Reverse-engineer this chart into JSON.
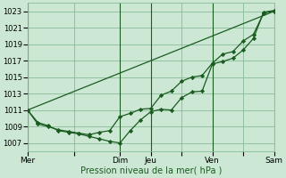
{
  "xlabel": "Pression niveau de la mer( hPa )",
  "background_color": "#cce8d4",
  "plot_bg_color": "#cce8d4",
  "grid_color": "#88bb99",
  "line_color": "#1a5c20",
  "ylim": [
    1006,
    1024
  ],
  "yticks": [
    1007,
    1009,
    1011,
    1013,
    1015,
    1017,
    1019,
    1021,
    1023
  ],
  "day_labels": [
    "Mer",
    "",
    "Dim",
    "Jeu",
    "",
    "Ven",
    "",
    "Sam"
  ],
  "day_positions": [
    0,
    36,
    72,
    96,
    120,
    144,
    168,
    192
  ],
  "xlim": [
    0,
    192
  ],
  "vlines": [
    0,
    72,
    96,
    144,
    192
  ],
  "series1_x": [
    0,
    8,
    16,
    24,
    32,
    40,
    48,
    56,
    64,
    72,
    80,
    88,
    96,
    104,
    112,
    120,
    128,
    136,
    144,
    152,
    160,
    168,
    176,
    184,
    192
  ],
  "series1_y": [
    1011,
    1009.5,
    1009.1,
    1008.5,
    1008.3,
    1008.1,
    1007.8,
    1007.5,
    1007.2,
    1007.0,
    1008.5,
    1009.8,
    1010.8,
    1011.1,
    1011.0,
    1012.5,
    1013.2,
    1013.3,
    1016.6,
    1016.9,
    1017.3,
    1018.3,
    1019.7,
    1022.9,
    1023.1
  ],
  "series2_x": [
    0,
    8,
    16,
    24,
    32,
    40,
    48,
    56,
    64,
    72,
    80,
    88,
    96,
    104,
    112,
    120,
    128,
    136,
    144,
    152,
    160,
    168,
    176,
    184,
    192
  ],
  "series2_y": [
    1011,
    1009.3,
    1009.0,
    1008.6,
    1008.4,
    1008.2,
    1008.0,
    1008.3,
    1008.5,
    1010.2,
    1010.6,
    1011.1,
    1011.2,
    1012.8,
    1013.3,
    1014.5,
    1015.0,
    1015.2,
    1016.7,
    1017.8,
    1018.1,
    1019.4,
    1020.2,
    1022.8,
    1023.0
  ],
  "trend_x": [
    0,
    192
  ],
  "trend_y": [
    1011,
    1023.0
  ]
}
